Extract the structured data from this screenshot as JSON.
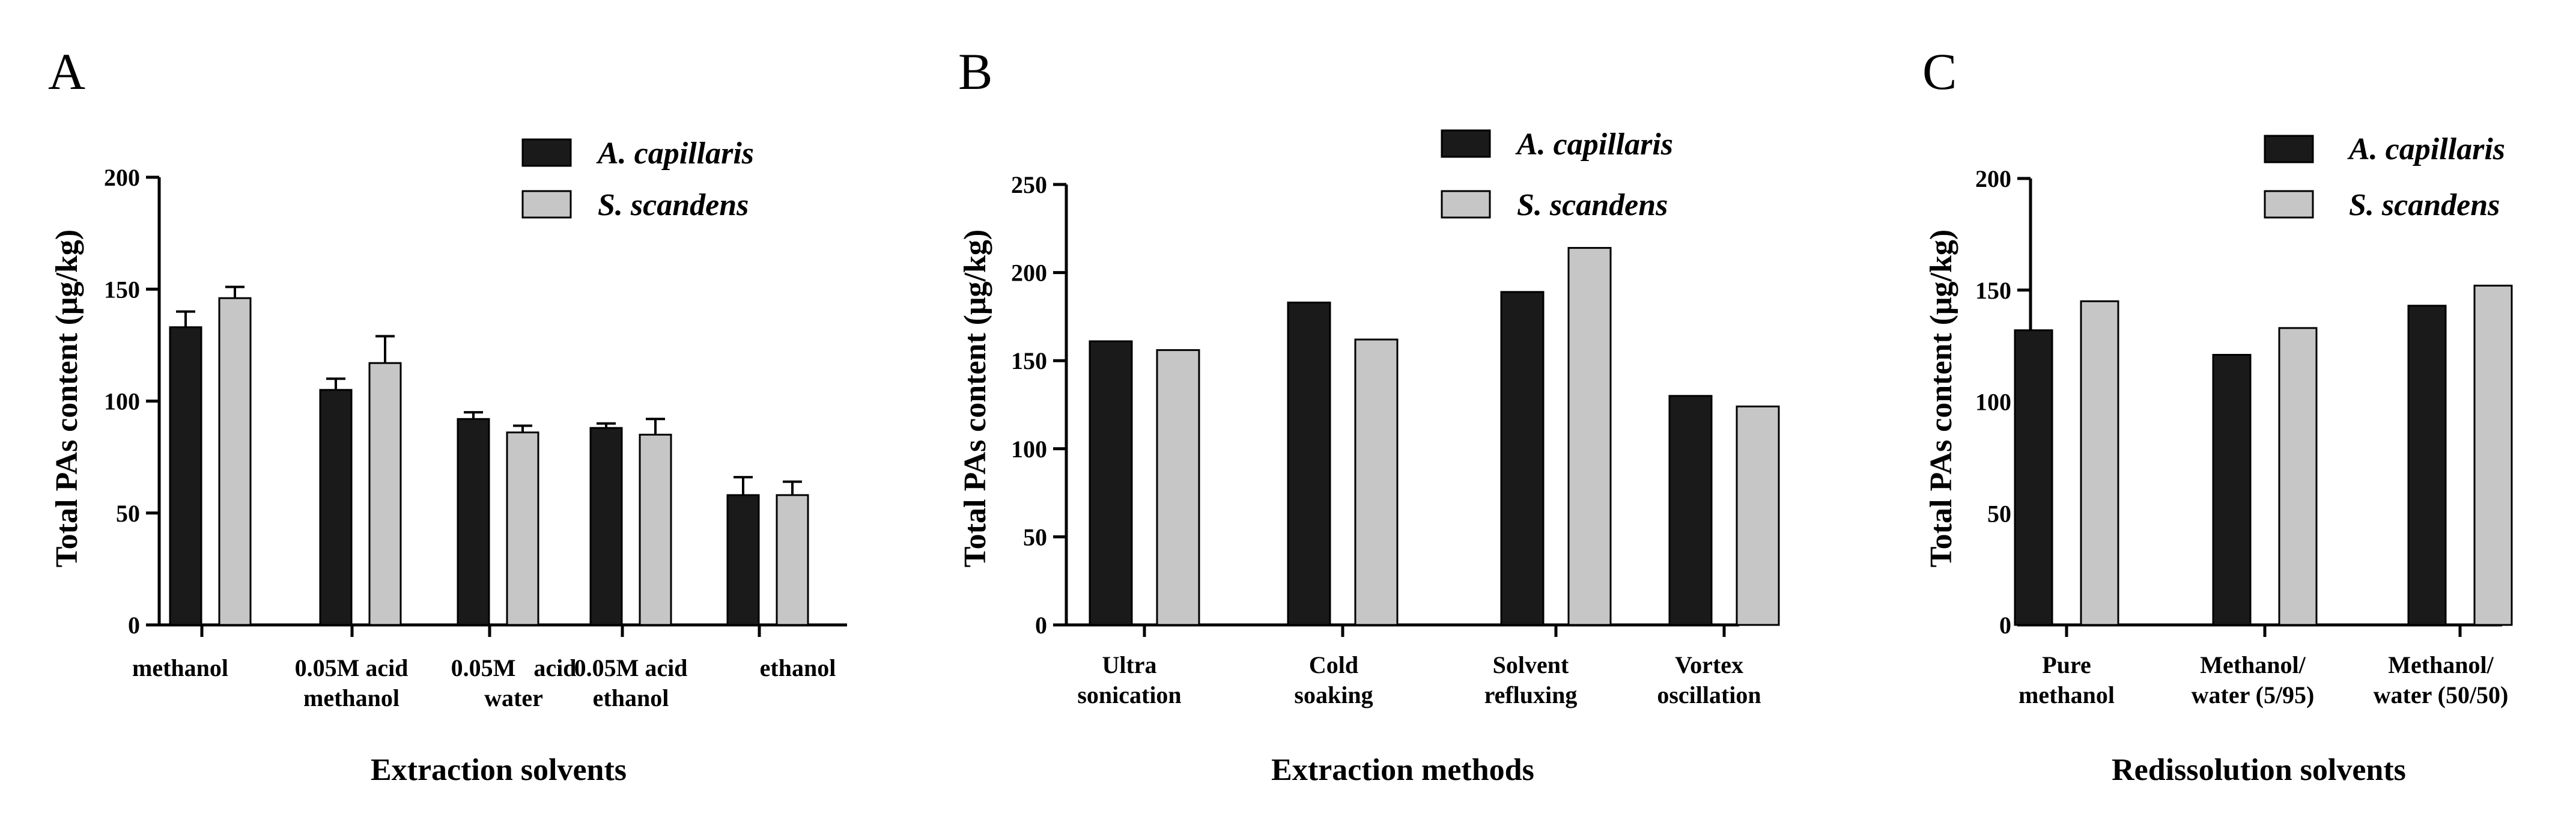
{
  "colors": {
    "series_a": "#1a1a1a",
    "series_b": "#c6c6c6"
  },
  "chart_data": [
    {
      "panel": "A",
      "type": "bar",
      "ylabel": "Total PAs content (μg/kg)",
      "xlabel": "Extraction solvents",
      "ylim": [
        0,
        200
      ],
      "yticks": [
        0,
        50,
        100,
        150,
        200
      ],
      "categories": [
        [
          "methanol"
        ],
        [
          "0.05M acid",
          "methanol"
        ],
        [
          "0.05M   acid",
          "water"
        ],
        [
          "0.05M acid",
          "ethanol"
        ],
        [
          "ethanol"
        ]
      ],
      "series": [
        {
          "name": "A. capillaris",
          "values": [
            133,
            105,
            92,
            88,
            58
          ],
          "errors": [
            7,
            5,
            3,
            2,
            8
          ]
        },
        {
          "name": "S. scandens",
          "values": [
            146,
            117,
            86,
            85,
            58
          ],
          "errors": [
            5,
            12,
            3,
            7,
            6
          ]
        }
      ],
      "legend": "top-right"
    },
    {
      "panel": "B",
      "type": "bar",
      "ylabel": "Total PAs content (μg/kg)",
      "xlabel": "Extraction methods",
      "ylim": [
        0,
        250
      ],
      "yticks": [
        0,
        50,
        100,
        150,
        200,
        250
      ],
      "categories": [
        [
          "Ultra",
          "sonication"
        ],
        [
          "Cold",
          "soaking"
        ],
        [
          "Solvent",
          "refluxing"
        ],
        [
          "Vortex",
          "oscillation"
        ]
      ],
      "series": [
        {
          "name": "A. capillaris",
          "values": [
            161,
            183,
            189,
            130
          ]
        },
        {
          "name": "S. scandens",
          "values": [
            156,
            162,
            214,
            124
          ]
        }
      ],
      "legend": "top-right"
    },
    {
      "panel": "C",
      "type": "bar",
      "ylabel": "Total PAs content (μg/kg)",
      "xlabel": "Redissolution solvents",
      "ylim": [
        0,
        200
      ],
      "yticks": [
        0,
        50,
        100,
        150,
        200
      ],
      "categories": [
        [
          "Pure",
          "methanol"
        ],
        [
          "Methanol/",
          "water (5/95)"
        ],
        [
          "Methanol/",
          "water (50/50)"
        ]
      ],
      "series": [
        {
          "name": "A. capillaris",
          "values": [
            132,
            121,
            143
          ]
        },
        {
          "name": "S. scandens",
          "values": [
            145,
            133,
            152
          ]
        }
      ],
      "legend": "top-right"
    }
  ]
}
